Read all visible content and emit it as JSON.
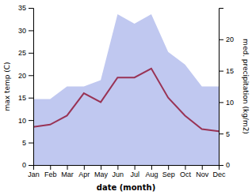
{
  "chart_data": {
    "type": "line",
    "categories": [
      "Jan",
      "Feb",
      "Mar",
      "Apr",
      "May",
      "Jun",
      "Jul",
      "Aug",
      "Sep",
      "Oct",
      "Nov",
      "Dec"
    ],
    "xlabel": "date (month)",
    "ylabel": "max temp (C)",
    "y2label": "med. precipitation (kg/m2)",
    "ylim": [
      0,
      35
    ],
    "yticks": [
      0,
      5,
      10,
      15,
      20,
      25,
      30,
      35
    ],
    "y2lim": [
      0,
      25
    ],
    "y2ticks": [
      0,
      5,
      10,
      15,
      20
    ],
    "series": [
      {
        "type": "area",
        "axis": "y2",
        "color": "#c0c8f0",
        "values": [
          10.5,
          10.5,
          12.5,
          12.5,
          13.5,
          24.0,
          22.5,
          24.0,
          18.0,
          16.0,
          12.5,
          12.5
        ]
      },
      {
        "type": "line",
        "color": "#993355",
        "values": [
          8.5,
          9.0,
          11.0,
          16.0,
          14.0,
          19.5,
          19.5,
          21.5,
          15.0,
          11.0,
          8.0,
          7.5
        ]
      }
    ]
  }
}
